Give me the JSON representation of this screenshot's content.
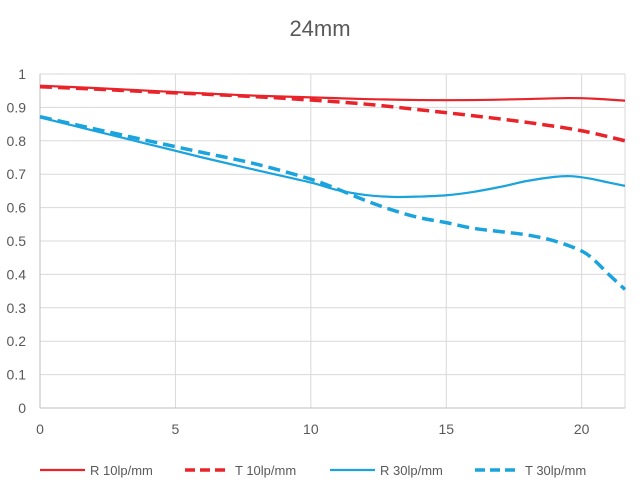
{
  "chart_data": {
    "type": "line",
    "title": "24mm",
    "xlabel": "",
    "ylabel": "",
    "xlim": [
      0,
      21.6
    ],
    "ylim": [
      0,
      1
    ],
    "xticks": [
      0,
      5,
      10,
      15,
      20
    ],
    "yticks": [
      0,
      0.1,
      0.2,
      0.3,
      0.4,
      0.5,
      0.6,
      0.7,
      0.8,
      0.9,
      1
    ],
    "ytick_labels": [
      "0",
      "0.1",
      "0.2",
      "0.3",
      "0.4",
      "0.5",
      "0.6",
      "0.7",
      "0.8",
      "0.9",
      "1"
    ],
    "grid": true,
    "legend_position": "bottom",
    "series": [
      {
        "name": "R 10lp/mm",
        "color": "#e8242a",
        "dash": false,
        "x": [
          0,
          2,
          4,
          6,
          8,
          10,
          12,
          14,
          16,
          18,
          19.5,
          20.5,
          21.6
        ],
        "y": [
          0.965,
          0.958,
          0.95,
          0.942,
          0.935,
          0.93,
          0.925,
          0.922,
          0.922,
          0.925,
          0.928,
          0.926,
          0.92
        ]
      },
      {
        "name": "T 10lp/mm",
        "color": "#e8242a",
        "dash": true,
        "x": [
          0,
          2,
          4,
          6,
          8,
          10,
          12,
          14,
          16,
          18,
          20,
          21.6
        ],
        "y": [
          0.962,
          0.955,
          0.947,
          0.94,
          0.932,
          0.922,
          0.91,
          0.893,
          0.875,
          0.855,
          0.83,
          0.8
        ]
      },
      {
        "name": "R 30lp/mm",
        "color": "#1aa3dc",
        "dash": false,
        "x": [
          0,
          2,
          4,
          6,
          8,
          10,
          11,
          12,
          13,
          14,
          15,
          16,
          17,
          18,
          19,
          19.6,
          20.3,
          21,
          21.6
        ],
        "y": [
          0.87,
          0.83,
          0.79,
          0.75,
          0.712,
          0.675,
          0.652,
          0.638,
          0.632,
          0.633,
          0.637,
          0.647,
          0.662,
          0.68,
          0.692,
          0.694,
          0.687,
          0.675,
          0.665
        ]
      },
      {
        "name": "T 30lp/mm",
        "color": "#1aa3dc",
        "dash": true,
        "x": [
          0,
          2,
          4,
          6,
          8,
          10,
          11,
          12,
          13,
          14,
          15,
          16,
          17,
          18,
          19,
          20,
          20.5,
          21,
          21.6
        ],
        "y": [
          0.872,
          0.836,
          0.8,
          0.765,
          0.73,
          0.685,
          0.655,
          0.622,
          0.593,
          0.57,
          0.555,
          0.538,
          0.528,
          0.518,
          0.5,
          0.47,
          0.44,
          0.4,
          0.355
        ]
      }
    ]
  }
}
